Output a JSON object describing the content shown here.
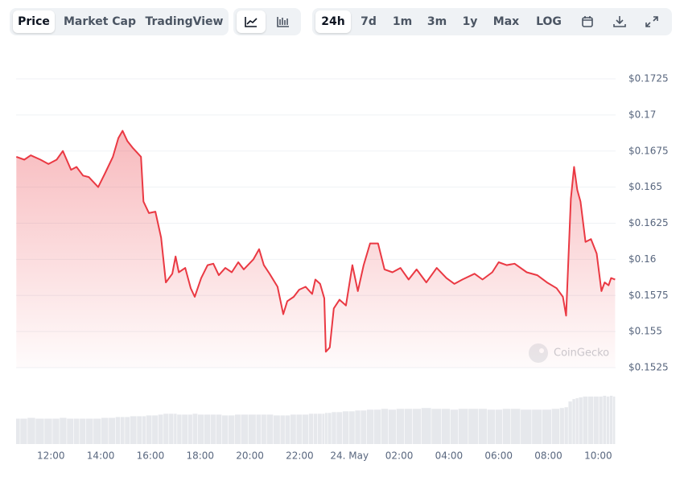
{
  "toolbar": {
    "views": [
      "Price",
      "Market Cap",
      "TradingView"
    ],
    "ranges": [
      "24h",
      "7d",
      "1m",
      "3m",
      "1y",
      "Max",
      "LOG"
    ]
  },
  "watermark": "CoinGecko",
  "chart_data": {
    "type": "area",
    "color": "#ea3943",
    "x": [
      10.61,
      10.93,
      11.19,
      11.58,
      11.9,
      12.23,
      12.48,
      12.81,
      13.03,
      13.29,
      13.52,
      13.9,
      14.16,
      14.49,
      14.71,
      14.88,
      15.07,
      15.3,
      15.62,
      15.72,
      15.94,
      16.2,
      16.43,
      16.62,
      16.88,
      17.01,
      17.14,
      17.4,
      17.62,
      17.78,
      18.04,
      18.3,
      18.53,
      18.75,
      19.01,
      19.27,
      19.53,
      19.75,
      20.14,
      20.37,
      20.56,
      20.79,
      21.11,
      21.34,
      21.5,
      21.76,
      21.98,
      22.24,
      22.5,
      22.63,
      22.82,
      22.99,
      23.05,
      23.21,
      23.37,
      23.6,
      23.86,
      24.12,
      24.34,
      24.57,
      24.83,
      25.15,
      25.41,
      25.73,
      26.05,
      26.38,
      26.7,
      27.09,
      27.51,
      27.9,
      28.22,
      28.54,
      29.03,
      29.35,
      29.74,
      30.0,
      30.32,
      30.64,
      31.13,
      31.55,
      31.94,
      32.33,
      32.58,
      32.71,
      32.9,
      33.03,
      33.16,
      33.29,
      33.49,
      33.71,
      33.94,
      34.13,
      34.26,
      34.42,
      34.52,
      34.68
    ],
    "series": [
      {
        "name": "Price",
        "values": [
          0.1671,
          0.1669,
          0.1672,
          0.1669,
          0.1666,
          0.1669,
          0.1675,
          0.1662,
          0.1664,
          0.1658,
          0.1657,
          0.165,
          0.1659,
          0.1671,
          0.1684,
          0.1689,
          0.1682,
          0.1677,
          0.1671,
          0.164,
          0.1632,
          0.1633,
          0.1615,
          0.1584,
          0.159,
          0.1602,
          0.1591,
          0.1594,
          0.158,
          0.1574,
          0.1587,
          0.1596,
          0.1597,
          0.1589,
          0.1594,
          0.1591,
          0.1598,
          0.1593,
          0.16,
          0.1607,
          0.1596,
          0.159,
          0.1581,
          0.1562,
          0.1571,
          0.1574,
          0.1579,
          0.1581,
          0.1576,
          0.1586,
          0.1583,
          0.1573,
          0.1536,
          0.1539,
          0.1566,
          0.1572,
          0.1568,
          0.1596,
          0.1578,
          0.1596,
          0.1611,
          0.1611,
          0.1593,
          0.1591,
          0.1594,
          0.1586,
          0.1593,
          0.1584,
          0.1594,
          0.1587,
          0.1583,
          0.1586,
          0.159,
          0.1586,
          0.1591,
          0.1598,
          0.1596,
          0.1597,
          0.1591,
          0.1589,
          0.1584,
          0.158,
          0.1574,
          0.1561,
          0.1642,
          0.1664,
          0.1648,
          0.164,
          0.1612,
          0.1614,
          0.1604,
          0.1578,
          0.1584,
          0.1582,
          0.1587,
          0.1586
        ]
      },
      {
        "name": "Volume",
        "values": [
          31,
          31,
          32,
          31,
          31,
          31,
          32,
          31,
          31,
          31,
          31,
          31,
          32,
          32,
          33,
          33,
          33,
          34,
          34,
          34,
          35,
          35,
          36,
          37,
          37,
          37,
          36,
          36,
          36,
          37,
          36,
          36,
          36,
          36,
          35,
          35,
          36,
          36,
          36,
          36,
          36,
          36,
          35,
          35,
          35,
          36,
          36,
          36,
          37,
          37,
          37,
          37,
          38,
          38,
          39,
          39,
          40,
          40,
          41,
          41,
          42,
          42,
          43,
          42,
          43,
          43,
          43,
          44,
          43,
          43,
          42,
          43,
          43,
          43,
          42,
          42,
          43,
          43,
          42,
          42,
          42,
          43,
          44,
          45,
          52,
          55,
          56,
          57,
          58,
          58,
          58,
          58,
          59,
          58,
          59,
          58
        ]
      }
    ],
    "xlim": [
      10.6,
      34.7
    ],
    "xticks": [
      {
        "value": 12,
        "label": "12:00"
      },
      {
        "value": 14,
        "label": "14:00"
      },
      {
        "value": 16,
        "label": "16:00"
      },
      {
        "value": 18,
        "label": "18:00"
      },
      {
        "value": 20,
        "label": "20:00"
      },
      {
        "value": 22,
        "label": "22:00"
      },
      {
        "value": 24,
        "label": "24. May"
      },
      {
        "value": 26,
        "label": "02:00"
      },
      {
        "value": 28,
        "label": "04:00"
      },
      {
        "value": 30,
        "label": "06:00"
      },
      {
        "value": 32,
        "label": "08:00"
      },
      {
        "value": 34,
        "label": "10:00"
      }
    ],
    "ylim": [
      0.1525,
      0.1725
    ],
    "yticks": [
      {
        "value": 0.1525,
        "label": "$0.1525"
      },
      {
        "value": 0.155,
        "label": "$0.155"
      },
      {
        "value": 0.1575,
        "label": "$0.1575"
      },
      {
        "value": 0.16,
        "label": "$0.16"
      },
      {
        "value": 0.1625,
        "label": "$0.1625"
      },
      {
        "value": 0.165,
        "label": "$0.165"
      },
      {
        "value": 0.1675,
        "label": "$0.1675"
      },
      {
        "value": 0.17,
        "label": "$0.17"
      },
      {
        "value": 0.1725,
        "label": "$0.1725"
      }
    ],
    "grid": true
  }
}
